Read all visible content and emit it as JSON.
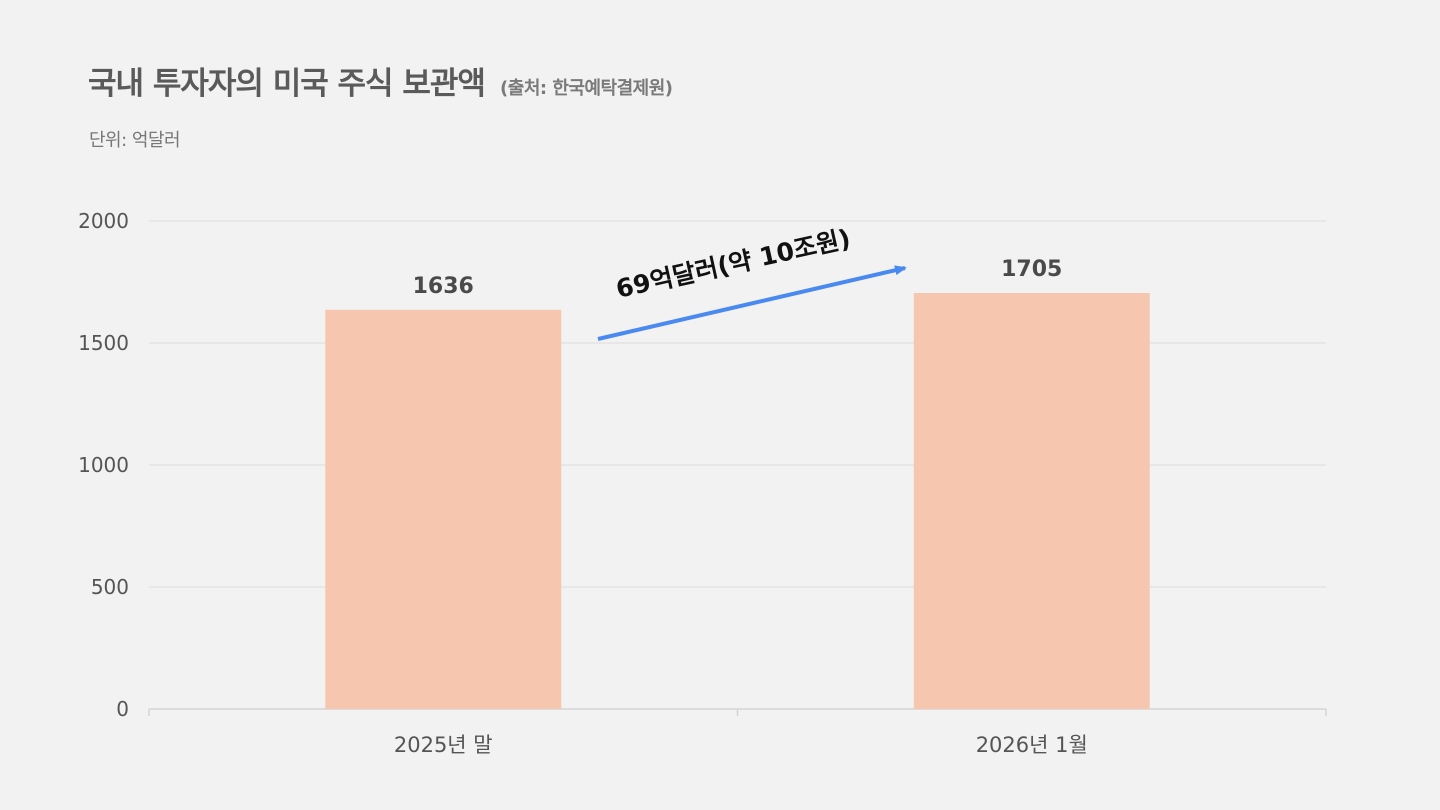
{
  "source": "(출처: 한국예탁결제원)",
  "unit": "단위: 억달러",
  "annotation": "69억달러(약 10조원)",
  "colors": {
    "bar": "#f6c7ae",
    "arrow": "#4a8af0",
    "grid": "#dcdcdc",
    "background": "#f2f2f3"
  },
  "chart_data": {
    "type": "bar",
    "title": "국내 투자자의 미국 주식 보관액",
    "xlabel": "",
    "ylabel": "",
    "categories": [
      "2025년 말",
      "2026년 1월"
    ],
    "values": [
      1636,
      1705
    ],
    "ylim": [
      0,
      2000
    ],
    "yticks": [
      0,
      500,
      1000,
      1500,
      2000
    ],
    "grid": true,
    "legend": "none"
  }
}
